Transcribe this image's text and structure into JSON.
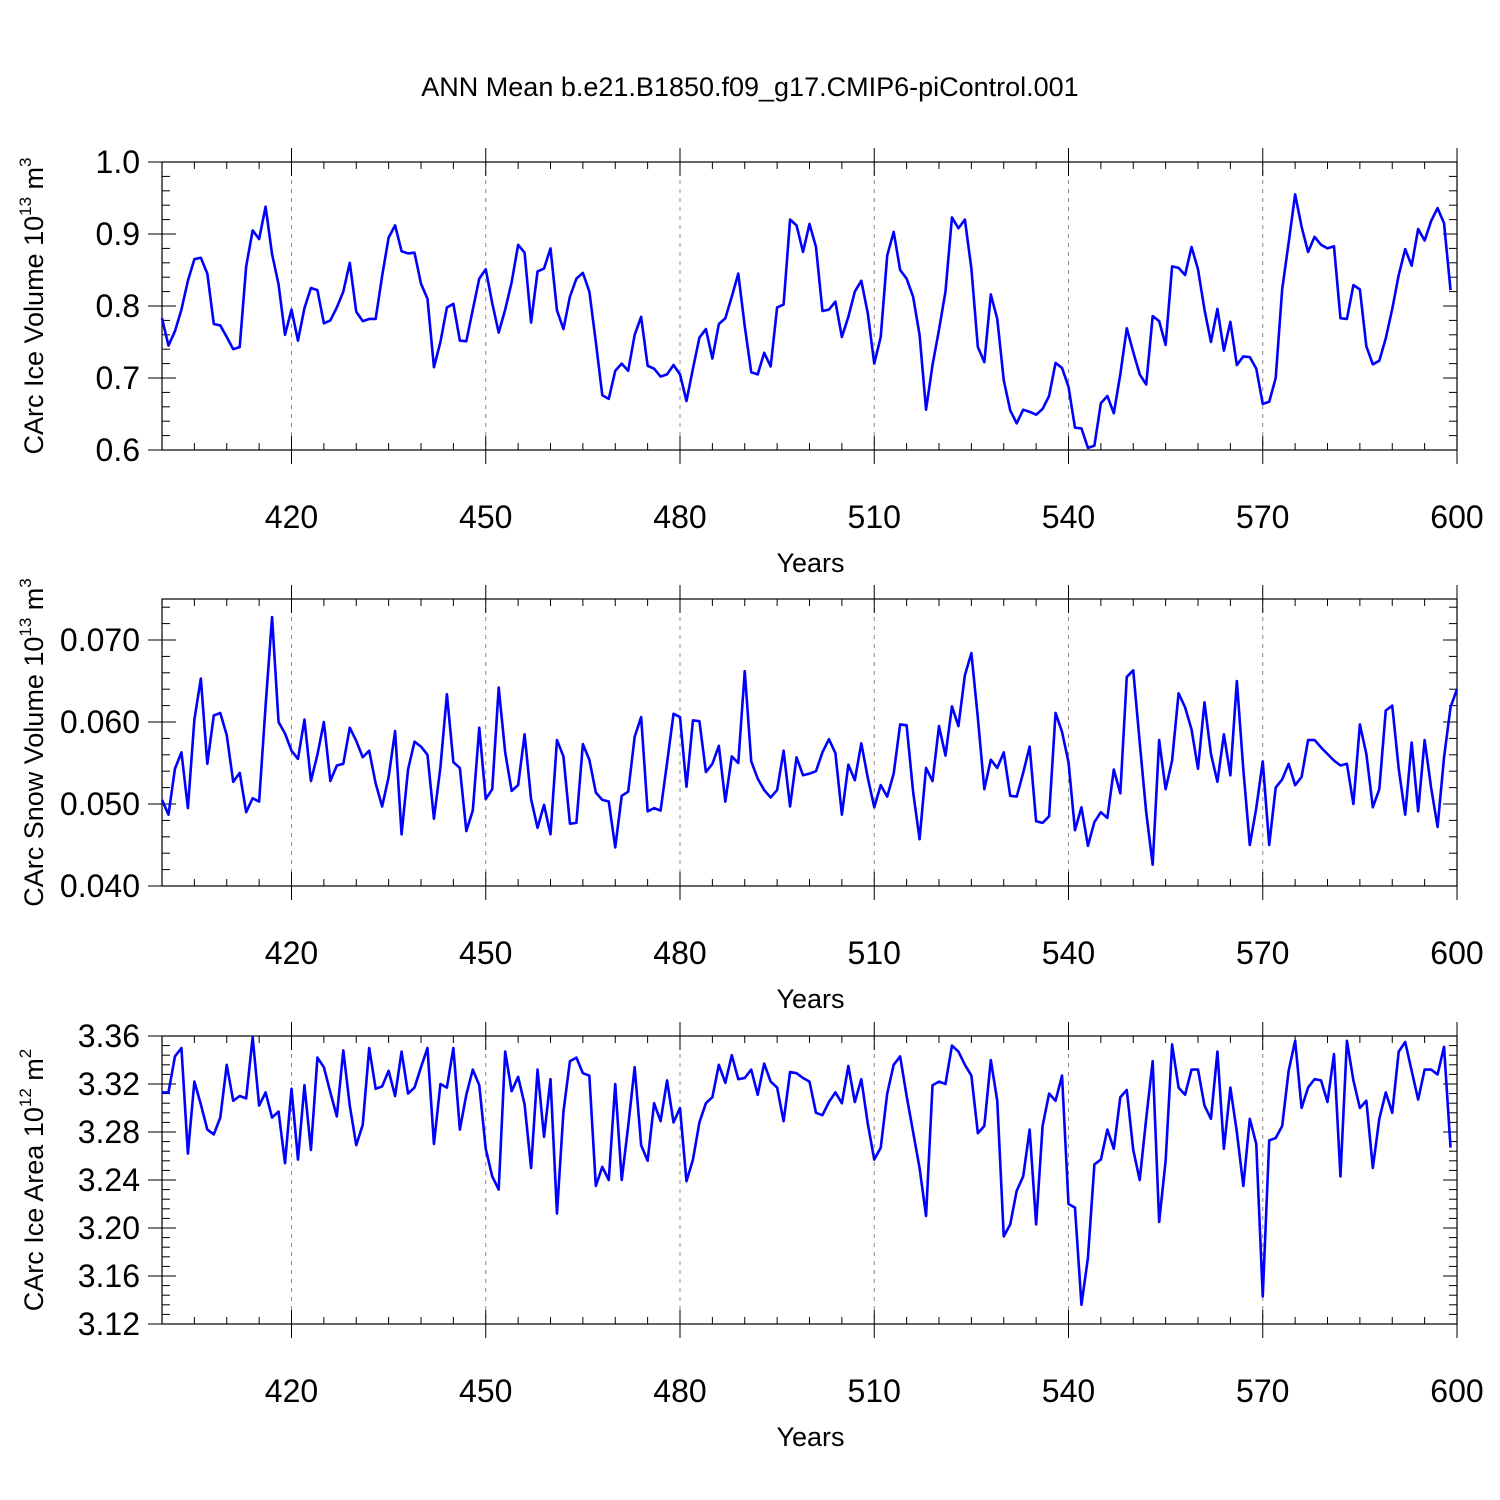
{
  "title": "ANN Mean b.e21.B1850.f09_g17.CMIP6-piControl.001",
  "line_color": "#0000ff",
  "chart_data": [
    {
      "type": "line",
      "xlabel": "Years",
      "ylabel_main": "CArc Ice Volume 10",
      "ylabel_exp": "13",
      "ylabel_unit": " m",
      "ylabel_unit_exp": "3",
      "xlim": [
        400,
        600
      ],
      "ylim": [
        0.6,
        1.0
      ],
      "xticks": [
        420,
        450,
        480,
        510,
        540,
        570,
        600
      ],
      "yticks": [
        0.6,
        0.7,
        0.8,
        0.9,
        1.0
      ],
      "ytick_labels": [
        "0.6",
        "0.7",
        "0.8",
        "0.9",
        "1.0"
      ],
      "grid": "vertical-dashed",
      "x_start": 400,
      "values": [
        0.783,
        0.745,
        0.765,
        0.795,
        0.835,
        0.865,
        0.867,
        0.845,
        0.775,
        0.773,
        0.757,
        0.74,
        0.743,
        0.855,
        0.905,
        0.893,
        0.938,
        0.872,
        0.83,
        0.76,
        0.795,
        0.752,
        0.797,
        0.825,
        0.822,
        0.776,
        0.78,
        0.798,
        0.82,
        0.86,
        0.792,
        0.779,
        0.782,
        0.782,
        0.842,
        0.895,
        0.912,
        0.876,
        0.873,
        0.874,
        0.831,
        0.81,
        0.715,
        0.75,
        0.798,
        0.803,
        0.752,
        0.751,
        0.795,
        0.838,
        0.851,
        0.804,
        0.763,
        0.795,
        0.833,
        0.885,
        0.874,
        0.777,
        0.848,
        0.852,
        0.88,
        0.794,
        0.768,
        0.813,
        0.838,
        0.846,
        0.82,
        0.75,
        0.676,
        0.671,
        0.71,
        0.72,
        0.71,
        0.76,
        0.785,
        0.717,
        0.713,
        0.702,
        0.705,
        0.718,
        0.705,
        0.668,
        0.713,
        0.756,
        0.768,
        0.727,
        0.775,
        0.783,
        0.813,
        0.845,
        0.772,
        0.708,
        0.705,
        0.735,
        0.716,
        0.798,
        0.802,
        0.92,
        0.912,
        0.875,
        0.914,
        0.882,
        0.793,
        0.795,
        0.806,
        0.757,
        0.785,
        0.82,
        0.835,
        0.79,
        0.72,
        0.757,
        0.87,
        0.903,
        0.85,
        0.838,
        0.813,
        0.76,
        0.656,
        0.718,
        0.767,
        0.82,
        0.923,
        0.908,
        0.92,
        0.852,
        0.743,
        0.722,
        0.816,
        0.782,
        0.697,
        0.655,
        0.637,
        0.656,
        0.653,
        0.649,
        0.657,
        0.675,
        0.721,
        0.714,
        0.688,
        0.631,
        0.63,
        0.603,
        0.606,
        0.665,
        0.675,
        0.651,
        0.705,
        0.769,
        0.736,
        0.705,
        0.691,
        0.786,
        0.779,
        0.746,
        0.855,
        0.853,
        0.843,
        0.882,
        0.851,
        0.795,
        0.75,
        0.796,
        0.738,
        0.778,
        0.718,
        0.73,
        0.729,
        0.713,
        0.664,
        0.667,
        0.7,
        0.823,
        0.888,
        0.955,
        0.91,
        0.875,
        0.896,
        0.885,
        0.88,
        0.883,
        0.783,
        0.782,
        0.829,
        0.823,
        0.744,
        0.719,
        0.724,
        0.755,
        0.796,
        0.843,
        0.879,
        0.856,
        0.907,
        0.891,
        0.918,
        0.936,
        0.915,
        0.822
      ]
    },
    {
      "type": "line",
      "xlabel": "Years",
      "ylabel_main": "CArc Snow Volume 10",
      "ylabel_exp": "13",
      "ylabel_unit": " m",
      "ylabel_unit_exp": "3",
      "xlim": [
        400,
        600
      ],
      "ylim": [
        0.04,
        0.075
      ],
      "xticks": [
        420,
        450,
        480,
        510,
        540,
        570,
        600
      ],
      "yticks": [
        0.04,
        0.05,
        0.06,
        0.07
      ],
      "ytick_labels": [
        "0.040",
        "0.050",
        "0.060",
        "0.070"
      ],
      "grid": "vertical-dashed",
      "x_start": 400,
      "values": [
        0.0505,
        0.0487,
        0.0543,
        0.0563,
        0.0495,
        0.0603,
        0.0653,
        0.0549,
        0.0608,
        0.0611,
        0.0584,
        0.0527,
        0.0538,
        0.049,
        0.0507,
        0.0503,
        0.062,
        0.0728,
        0.06,
        0.0586,
        0.0565,
        0.0555,
        0.0603,
        0.0528,
        0.056,
        0.06,
        0.0528,
        0.0547,
        0.0549,
        0.0593,
        0.0577,
        0.0557,
        0.0565,
        0.0525,
        0.0497,
        0.0533,
        0.0589,
        0.0463,
        0.0542,
        0.0576,
        0.057,
        0.056,
        0.0482,
        0.0545,
        0.0634,
        0.0551,
        0.0544,
        0.0467,
        0.0492,
        0.0593,
        0.0506,
        0.0518,
        0.0642,
        0.0563,
        0.0516,
        0.0523,
        0.0585,
        0.0506,
        0.0471,
        0.0499,
        0.0463,
        0.0578,
        0.0558,
        0.0476,
        0.0477,
        0.0573,
        0.0554,
        0.0514,
        0.0505,
        0.0503,
        0.0447,
        0.051,
        0.0515,
        0.0582,
        0.0606,
        0.0491,
        0.0495,
        0.0492,
        0.055,
        0.061,
        0.0606,
        0.0521,
        0.0602,
        0.0601,
        0.0539,
        0.0549,
        0.0571,
        0.0503,
        0.0558,
        0.055,
        0.0662,
        0.0552,
        0.0531,
        0.0517,
        0.0508,
        0.0517,
        0.0565,
        0.0497,
        0.0557,
        0.0535,
        0.0537,
        0.054,
        0.0563,
        0.0579,
        0.0562,
        0.0487,
        0.0548,
        0.0529,
        0.0574,
        0.0532,
        0.0496,
        0.0523,
        0.0509,
        0.0537,
        0.0597,
        0.0596,
        0.0515,
        0.0457,
        0.0544,
        0.0528,
        0.0595,
        0.0559,
        0.0619,
        0.0595,
        0.0657,
        0.0684,
        0.0605,
        0.0518,
        0.0554,
        0.0544,
        0.0563,
        0.051,
        0.0509,
        0.0538,
        0.057,
        0.0479,
        0.0477,
        0.0485,
        0.0611,
        0.0588,
        0.0551,
        0.0468,
        0.0496,
        0.0449,
        0.0478,
        0.049,
        0.0483,
        0.0542,
        0.0513,
        0.0655,
        0.0663,
        0.0575,
        0.049,
        0.0426,
        0.0578,
        0.0518,
        0.0553,
        0.0635,
        0.0618,
        0.0591,
        0.0543,
        0.0624,
        0.0561,
        0.0527,
        0.0585,
        0.0535,
        0.065,
        0.0542,
        0.045,
        0.0495,
        0.0552,
        0.045,
        0.052,
        0.053,
        0.0549,
        0.0523,
        0.0533,
        0.0578,
        0.0578,
        0.0569,
        0.0561,
        0.0553,
        0.0547,
        0.0549,
        0.05,
        0.0597,
        0.0561,
        0.0496,
        0.0518,
        0.0614,
        0.062,
        0.0543,
        0.0487,
        0.0575,
        0.0491,
        0.0578,
        0.052,
        0.0472,
        0.0557,
        0.0618,
        0.064
      ]
    },
    {
      "type": "line",
      "xlabel": "Years",
      "ylabel_main": "CArc Ice Area 10",
      "ylabel_exp": "12",
      "ylabel_unit": " m",
      "ylabel_unit_exp": "2",
      "xlim": [
        400,
        600
      ],
      "ylim": [
        3.12,
        3.36
      ],
      "xticks": [
        420,
        450,
        480,
        510,
        540,
        570,
        600
      ],
      "yticks": [
        3.12,
        3.16,
        3.2,
        3.24,
        3.28,
        3.32,
        3.36
      ],
      "ytick_labels": [
        "3.12",
        "3.16",
        "3.20",
        "3.24",
        "3.28",
        "3.32",
        "3.36"
      ],
      "grid": "vertical-dashed",
      "x_start": 400,
      "values": [
        3.313,
        3.313,
        3.343,
        3.35,
        3.262,
        3.322,
        3.303,
        3.282,
        3.278,
        3.292,
        3.336,
        3.306,
        3.31,
        3.308,
        3.359,
        3.302,
        3.313,
        3.292,
        3.297,
        3.254,
        3.316,
        3.257,
        3.319,
        3.265,
        3.342,
        3.334,
        3.313,
        3.293,
        3.348,
        3.302,
        3.269,
        3.286,
        3.35,
        3.316,
        3.318,
        3.331,
        3.31,
        3.347,
        3.312,
        3.317,
        3.334,
        3.35,
        3.27,
        3.32,
        3.317,
        3.35,
        3.282,
        3.311,
        3.332,
        3.319,
        3.266,
        3.243,
        3.232,
        3.347,
        3.314,
        3.326,
        3.303,
        3.25,
        3.332,
        3.276,
        3.324,
        3.212,
        3.297,
        3.339,
        3.342,
        3.329,
        3.327,
        3.235,
        3.251,
        3.24,
        3.32,
        3.24,
        3.285,
        3.334,
        3.269,
        3.256,
        3.304,
        3.289,
        3.323,
        3.288,
        3.3,
        3.239,
        3.257,
        3.288,
        3.304,
        3.309,
        3.336,
        3.321,
        3.344,
        3.324,
        3.325,
        3.332,
        3.311,
        3.337,
        3.322,
        3.317,
        3.289,
        3.33,
        3.329,
        3.325,
        3.322,
        3.296,
        3.294,
        3.305,
        3.313,
        3.304,
        3.335,
        3.305,
        3.324,
        3.287,
        3.257,
        3.267,
        3.312,
        3.336,
        3.343,
        3.31,
        3.28,
        3.25,
        3.21,
        3.319,
        3.322,
        3.32,
        3.352,
        3.347,
        3.336,
        3.327,
        3.279,
        3.285,
        3.34,
        3.306,
        3.193,
        3.203,
        3.231,
        3.243,
        3.282,
        3.203,
        3.285,
        3.312,
        3.306,
        3.327,
        3.22,
        3.217,
        3.136,
        3.175,
        3.253,
        3.257,
        3.282,
        3.266,
        3.309,
        3.315,
        3.265,
        3.24,
        3.291,
        3.339,
        3.205,
        3.256,
        3.353,
        3.317,
        3.311,
        3.332,
        3.332,
        3.302,
        3.291,
        3.347,
        3.266,
        3.317,
        3.28,
        3.235,
        3.291,
        3.27,
        3.143,
        3.273,
        3.275,
        3.285,
        3.331,
        3.356,
        3.3,
        3.317,
        3.324,
        3.323,
        3.305,
        3.345,
        3.243,
        3.356,
        3.323,
        3.3,
        3.306,
        3.25,
        3.291,
        3.313,
        3.296,
        3.347,
        3.355,
        3.331,
        3.307,
        3.332,
        3.332,
        3.328,
        3.351,
        3.267
      ]
    }
  ]
}
